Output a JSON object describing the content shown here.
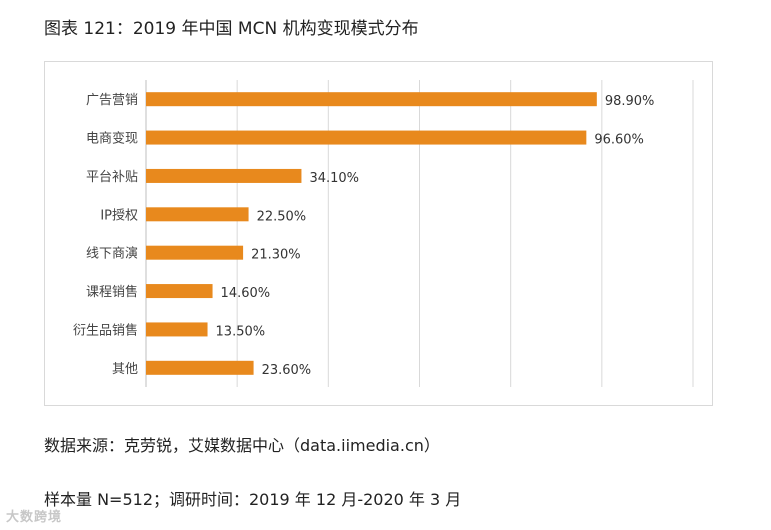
{
  "header": {
    "title": "图表 121：2019 年中国 MCN 机构变现模式分布"
  },
  "chart_data": {
    "type": "bar",
    "orientation": "horizontal",
    "categories": [
      "广告营销",
      "电商变现",
      "平台补贴",
      "IP授权",
      "线下商演",
      "课程销售",
      "衍生品销售",
      "其他"
    ],
    "values": [
      98.9,
      96.6,
      34.1,
      22.5,
      21.3,
      14.6,
      13.5,
      23.6
    ],
    "value_labels": [
      "98.90%",
      "96.60%",
      "34.10%",
      "22.50%",
      "21.30%",
      "14.60%",
      "13.50%",
      "23.60%"
    ],
    "xlim": [
      0,
      120
    ],
    "grid": "vertical",
    "bar_color": "#E8891D"
  },
  "footer": {
    "source": "数据来源：克劳锐，艾媒数据中心（data.iimedia.cn）",
    "sample": "样本量 N=512；调研时间：2019 年 12 月-2020 年 3 月",
    "watermark": "大数跨境"
  }
}
